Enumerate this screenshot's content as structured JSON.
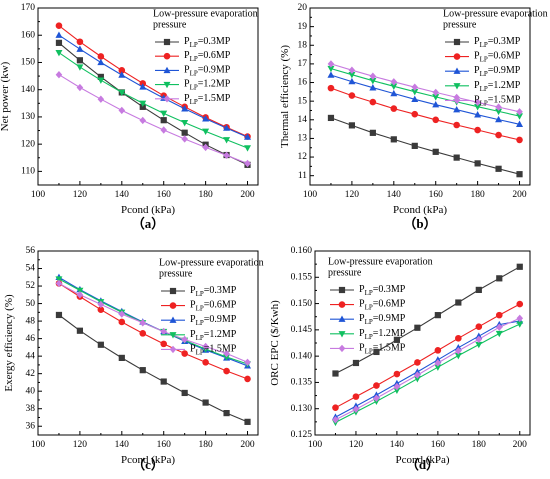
{
  "colors": {
    "0.3MP": "#3a3a3a",
    "0.6MP": "#ee2222",
    "0.9MP": "#1f55d6",
    "1.2MP": "#10c060",
    "1.5MP": "#c77be0"
  },
  "chart_data": [
    {
      "id": "a",
      "type": "line",
      "panel_label": "（a）",
      "xlabel": "Pcond (kPa)",
      "ylabel": "Net power (kw)",
      "xlim": [
        100,
        205
      ],
      "ylim": [
        105,
        170
      ],
      "xticks": [
        100,
        120,
        140,
        160,
        180,
        200
      ],
      "yticks": [
        110,
        120,
        130,
        140,
        150,
        160,
        170
      ],
      "legend_title": "Low-pressure evaporation pressure",
      "legend_position": "top-right",
      "x": [
        110,
        120,
        130,
        140,
        150,
        160,
        170,
        180,
        190,
        200
      ],
      "series": [
        {
          "name": "P_LP=0.3MP",
          "marker": "square",
          "color_key": "0.3MP",
          "values": [
            157.2,
            150.8,
            144.7,
            139.0,
            133.7,
            128.8,
            124.2,
            119.8,
            116.0,
            112.4
          ]
        },
        {
          "name": "P_LP=0.6MP",
          "marker": "circle",
          "color_key": "0.6MP",
          "values": [
            163.5,
            157.6,
            152.2,
            147.1,
            142.3,
            137.8,
            133.7,
            129.8,
            126.2,
            122.8
          ]
        },
        {
          "name": "P_LP=0.9MP",
          "marker": "triangle-up",
          "color_key": "0.9MP",
          "values": [
            160.0,
            154.9,
            150.0,
            145.4,
            141.0,
            136.9,
            133.0,
            129.3,
            125.9,
            122.6
          ]
        },
        {
          "name": "P_LP=1.2MP",
          "marker": "triangle-down",
          "color_key": "1.2MP",
          "values": [
            153.6,
            148.3,
            143.5,
            139.0,
            135.0,
            131.3,
            127.9,
            124.7,
            121.6,
            118.6
          ]
        },
        {
          "name": "P_LP=1.5MP",
          "marker": "diamond",
          "color_key": "1.5MP",
          "values": [
            145.5,
            140.8,
            136.5,
            132.4,
            128.7,
            125.2,
            121.9,
            118.8,
            115.9,
            112.9
          ]
        }
      ]
    },
    {
      "id": "b",
      "type": "line",
      "panel_label": "（b）",
      "xlabel": "Pcond (kPa)",
      "ylabel": "Thermal efficiency (%)",
      "xlim": [
        100,
        205
      ],
      "ylim": [
        10.5,
        20
      ],
      "xticks": [
        100,
        120,
        140,
        160,
        180,
        200
      ],
      "yticks": [
        11,
        12,
        13,
        14,
        15,
        16,
        17,
        18,
        19,
        20
      ],
      "legend_title": "Low-pressure evaporation pressure",
      "legend_position": "top-right",
      "x": [
        110,
        120,
        130,
        140,
        150,
        160,
        170,
        180,
        190,
        200
      ],
      "series": [
        {
          "name": "P_LP=0.3MP",
          "marker": "square",
          "color_key": "0.3MP",
          "values": [
            14.1,
            13.7,
            13.3,
            12.95,
            12.6,
            12.28,
            11.97,
            11.66,
            11.37,
            11.08
          ]
        },
        {
          "name": "P_LP=0.6MP",
          "marker": "circle",
          "color_key": "0.6MP",
          "values": [
            15.7,
            15.3,
            14.95,
            14.6,
            14.3,
            14.0,
            13.72,
            13.45,
            13.18,
            12.92
          ]
        },
        {
          "name": "P_LP=0.9MP",
          "marker": "triangle-up",
          "color_key": "0.9MP",
          "values": [
            16.4,
            16.05,
            15.72,
            15.41,
            15.1,
            14.81,
            14.54,
            14.27,
            14.01,
            13.76
          ]
        },
        {
          "name": "P_LP=1.2MP",
          "marker": "triangle-down",
          "color_key": "1.2MP",
          "values": [
            16.75,
            16.42,
            16.1,
            15.8,
            15.51,
            15.23,
            14.96,
            14.7,
            14.45,
            14.2
          ]
        },
        {
          "name": "P_LP=1.5MP",
          "marker": "diamond",
          "color_key": "1.5MP",
          "values": [
            17.0,
            16.66,
            16.34,
            16.04,
            15.75,
            15.47,
            15.2,
            14.94,
            14.68,
            14.43
          ]
        }
      ]
    },
    {
      "id": "c",
      "type": "line",
      "panel_label": "（c）",
      "xlabel": "Pcond (kPa)",
      "ylabel": "Exergy efficiency (%)",
      "xlim": [
        100,
        205
      ],
      "ylim": [
        35,
        56
      ],
      "xticks": [
        100,
        120,
        140,
        160,
        180,
        200
      ],
      "yticks": [
        36,
        38,
        40,
        42,
        44,
        46,
        48,
        50,
        52,
        54,
        56
      ],
      "legend_title": "Low-pressure evaporation pressure",
      "legend_position": "top-right",
      "x": [
        110,
        120,
        130,
        140,
        150,
        160,
        170,
        180,
        190,
        200
      ],
      "series": [
        {
          "name": "P_LP=0.3MP",
          "marker": "square",
          "color_key": "0.3MP",
          "values": [
            48.7,
            46.9,
            45.3,
            43.8,
            42.4,
            41.1,
            39.8,
            38.7,
            37.5,
            36.5
          ]
        },
        {
          "name": "P_LP=0.6MP",
          "marker": "circle",
          "color_key": "0.6MP",
          "values": [
            52.3,
            50.8,
            49.3,
            47.9,
            46.6,
            45.4,
            44.3,
            43.3,
            42.3,
            41.4
          ]
        },
        {
          "name": "P_LP=0.9MP",
          "marker": "triangle-up",
          "color_key": "0.9MP",
          "values": [
            53.0,
            51.6,
            50.3,
            49.1,
            47.9,
            46.8,
            45.7,
            44.7,
            43.8,
            42.9
          ]
        },
        {
          "name": "P_LP=1.2MP",
          "marker": "triangle-down",
          "color_key": "1.2MP",
          "values": [
            52.8,
            51.5,
            50.2,
            49.0,
            47.8,
            46.8,
            45.8,
            44.8,
            43.9,
            43.1
          ]
        },
        {
          "name": "P_LP=1.5MP",
          "marker": "diamond",
          "color_key": "1.5MP",
          "values": [
            52.3,
            51.0,
            49.9,
            48.8,
            47.8,
            46.8,
            45.9,
            45.1,
            44.3,
            43.3
          ]
        }
      ]
    },
    {
      "id": "d",
      "type": "line",
      "panel_label": "（d）",
      "xlabel": "Pcond (kPa)",
      "ylabel": "ORC EPC ($/Kwh)",
      "xlim": [
        100,
        205
      ],
      "ylim": [
        0.125,
        0.16
      ],
      "xticks": [
        100,
        120,
        140,
        160,
        180,
        200
      ],
      "yticks": [
        0.125,
        0.13,
        0.135,
        0.14,
        0.145,
        0.15,
        0.155,
        0.16
      ],
      "ytick_labels": [
        "0.125",
        "0.130",
        "0.135",
        "0.140",
        "0.145",
        "0.150",
        "0.155",
        "0.160"
      ],
      "legend_title": "Low-pressure evaporation pressure",
      "legend_position": "top-left",
      "x": [
        110,
        120,
        130,
        140,
        150,
        160,
        170,
        180,
        190,
        200
      ],
      "series": [
        {
          "name": "P_LP=0.3MP",
          "marker": "square",
          "color_key": "0.3MP",
          "values": [
            0.1367,
            0.1387,
            0.1408,
            0.1431,
            0.1454,
            0.1478,
            0.1502,
            0.1526,
            0.1548,
            0.157
          ]
        },
        {
          "name": "P_LP=0.6MP",
          "marker": "circle",
          "color_key": "0.6MP",
          "values": [
            0.1302,
            0.1323,
            0.1344,
            0.1366,
            0.1388,
            0.1411,
            0.1434,
            0.1456,
            0.1478,
            0.1499
          ]
        },
        {
          "name": "P_LP=0.9MP",
          "marker": "triangle-up",
          "color_key": "0.9MP",
          "values": [
            0.1284,
            0.1305,
            0.1326,
            0.1348,
            0.137,
            0.1393,
            0.1416,
            0.1438,
            0.146,
            0.1467
          ]
        },
        {
          "name": "P_LP=1.2MP",
          "marker": "triangle-down",
          "color_key": "1.2MP",
          "values": [
            0.1274,
            0.1294,
            0.1314,
            0.1335,
            0.1357,
            0.1379,
            0.1401,
            0.1422,
            0.1443,
            0.1461
          ]
        },
        {
          "name": "P_LP=1.5MP",
          "marker": "diamond",
          "color_key": "1.5MP",
          "values": [
            0.1279,
            0.1299,
            0.132,
            0.1342,
            0.1364,
            0.1387,
            0.141,
            0.1432,
            0.1455,
            0.1472
          ]
        }
      ]
    }
  ]
}
